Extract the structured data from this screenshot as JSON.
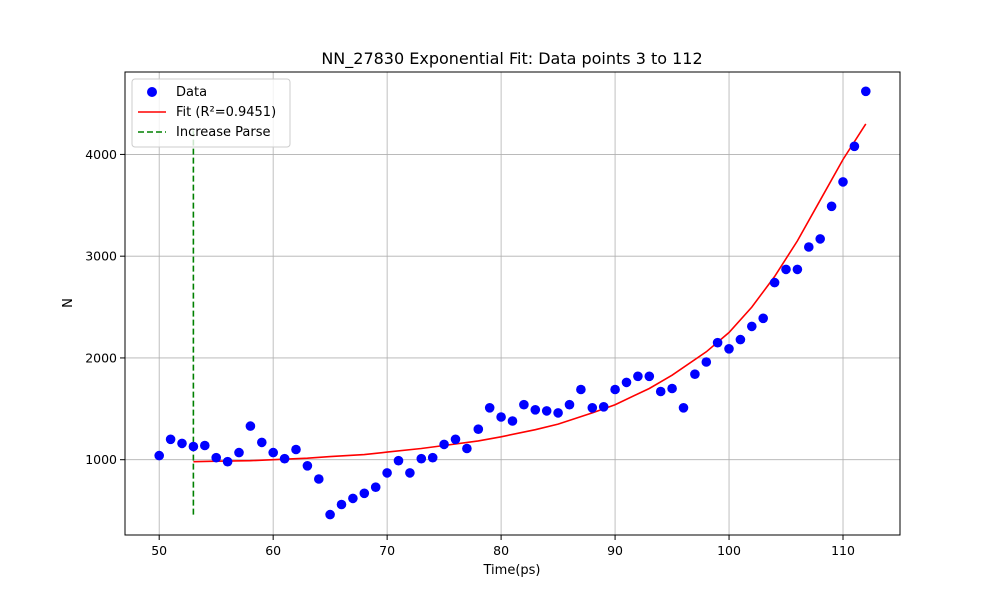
{
  "chart_data": {
    "type": "scatter",
    "title": "NN_27830 Exponential Fit: Data points 3 to 112",
    "xlabel": "Time(ps)",
    "ylabel": "N",
    "xlim": [
      47,
      115
    ],
    "ylim": [
      260,
      4810
    ],
    "x_ticks": [
      50,
      60,
      70,
      80,
      90,
      100,
      110
    ],
    "y_ticks": [
      1000,
      2000,
      3000,
      4000
    ],
    "grid": true,
    "legend_position": "top-left",
    "legend": [
      "Data",
      "Fit (R²=0.9451)",
      "Increase Parse"
    ],
    "colors": {
      "data": "#0000ff",
      "fit": "#ff0000",
      "marker": "#008000"
    },
    "data": {
      "name": "Data",
      "x": [
        50,
        51,
        52,
        53,
        54,
        55,
        56,
        57,
        58,
        59,
        60,
        61,
        62,
        63,
        64,
        65,
        66,
        67,
        68,
        69,
        70,
        71,
        72,
        73,
        74,
        75,
        76,
        77,
        78,
        79,
        80,
        81,
        82,
        83,
        84,
        85,
        86,
        87,
        88,
        89,
        90,
        91,
        92,
        93,
        94,
        95,
        96,
        97,
        98,
        99,
        100,
        101,
        102,
        103,
        104,
        105,
        106,
        107,
        108,
        109,
        110,
        111,
        112
      ],
      "y": [
        1040,
        1200,
        1160,
        1130,
        1140,
        1020,
        980,
        1070,
        1330,
        1170,
        1070,
        1010,
        1100,
        940,
        810,
        460,
        560,
        620,
        670,
        730,
        870,
        990,
        870,
        1010,
        1020,
        1150,
        1200,
        1110,
        1300,
        1510,
        1420,
        1380,
        1540,
        1490,
        1480,
        1460,
        1540,
        1690,
        1510,
        1520,
        1690,
        1760,
        1820,
        1820,
        1670,
        1700,
        1510,
        1840,
        1960,
        2150,
        2090,
        2180,
        2310,
        2390,
        2740,
        2870,
        2870,
        3090,
        3170,
        3490,
        3730,
        4080,
        4620
      ]
    },
    "fit": {
      "name": "Fit (R²=0.9451)",
      "x": [
        53,
        55,
        58,
        60,
        63,
        65,
        68,
        70,
        73,
        75,
        78,
        80,
        83,
        85,
        88,
        90,
        93,
        95,
        98,
        100,
        102,
        104,
        106,
        108,
        110,
        112
      ],
      "y": [
        980,
        985,
        990,
        1000,
        1015,
        1030,
        1050,
        1075,
        1110,
        1140,
        1185,
        1225,
        1295,
        1350,
        1460,
        1540,
        1700,
        1830,
        2060,
        2250,
        2500,
        2800,
        3150,
        3550,
        3950,
        4300
      ]
    },
    "vline": {
      "name": "Increase Parse",
      "x": 53,
      "y": [
        460,
        4250
      ]
    }
  }
}
